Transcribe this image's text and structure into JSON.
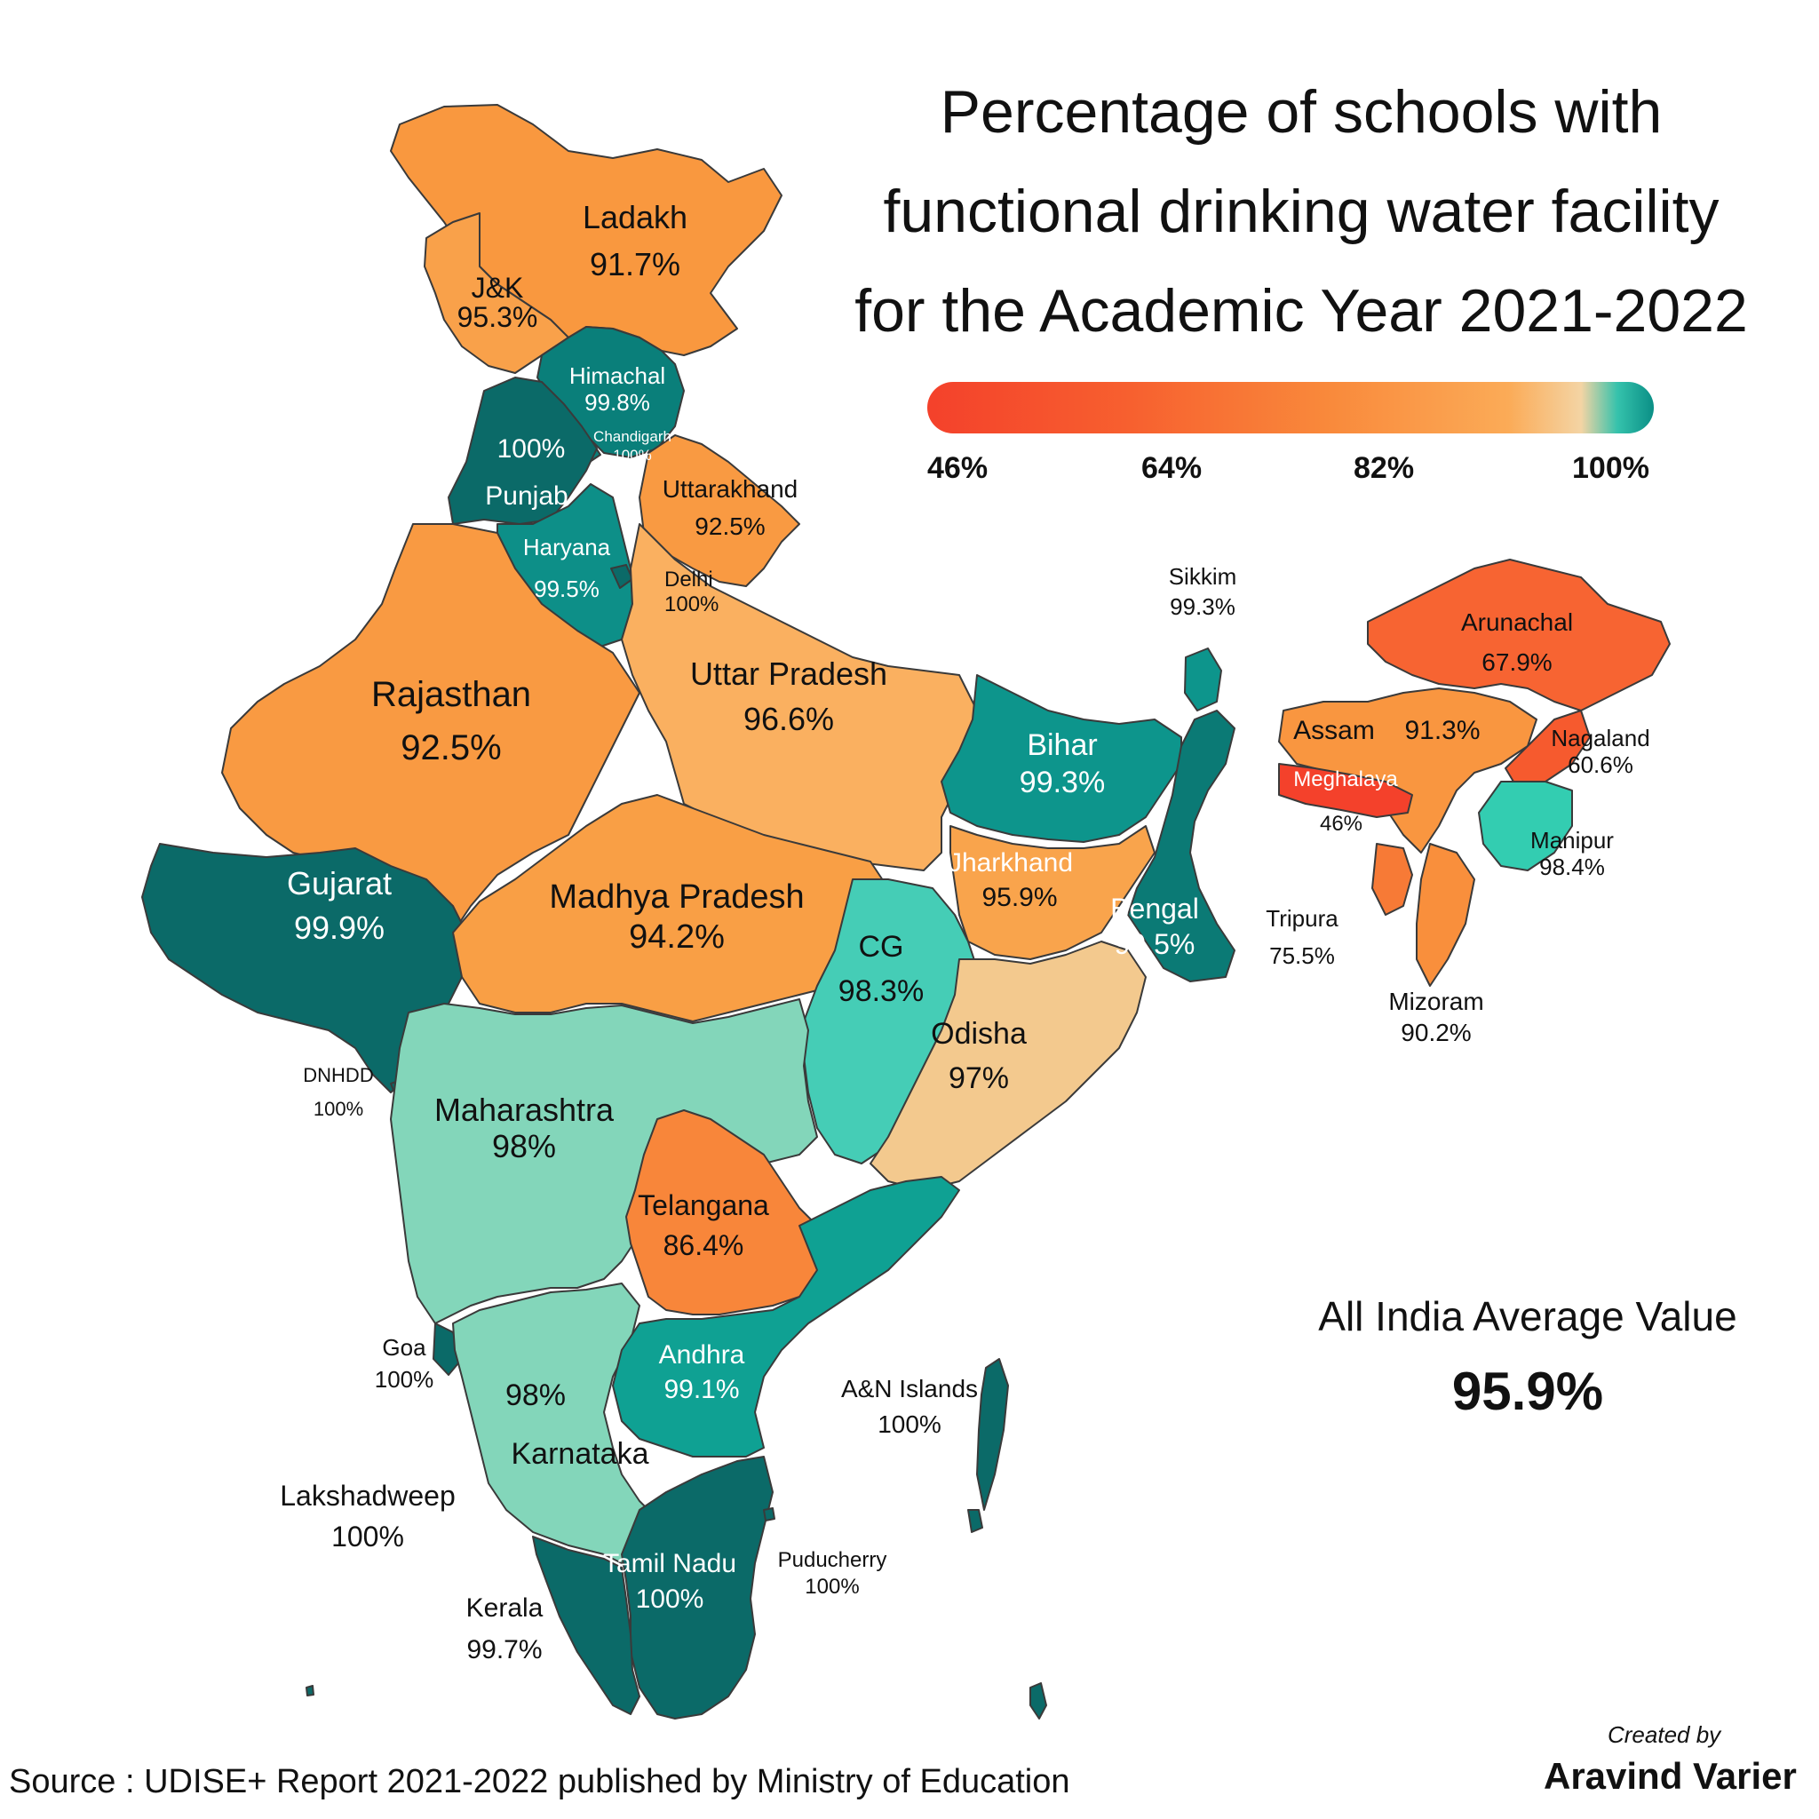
{
  "title_lines": [
    "Percentage of schools with",
    "functional drinking water facility",
    "for the Academic Year 2021-2022"
  ],
  "legend": {
    "ticks": [
      "46%",
      "64%",
      "82%",
      "100%"
    ],
    "colors": [
      "#f4412b",
      "#f7602f",
      "#f9893b",
      "#fbab57",
      "#f4d4a4",
      "#35c2ac",
      "#0a8f86"
    ]
  },
  "regions": [
    {
      "name": "Ladakh",
      "value": "91.7%",
      "percent": 91.7,
      "color": "#f9983f"
    },
    {
      "name": "J&K",
      "value": "95.3%",
      "percent": 95.3,
      "color": "#f9a14a"
    },
    {
      "name": "Himachal",
      "value": "99.8%",
      "percent": 99.8,
      "color": "#0a7f7a"
    },
    {
      "name": "Chandigarh",
      "value": "100%",
      "percent": 100,
      "color": "#0a7f7a"
    },
    {
      "name": "Punjab",
      "value": "100%",
      "percent": 100,
      "color": "#0b6a68"
    },
    {
      "name": "Uttarakhand",
      "value": "92.5%",
      "percent": 92.5,
      "color": "#f99a42"
    },
    {
      "name": "Haryana",
      "value": "99.5%",
      "percent": 99.5,
      "color": "#0d8f88"
    },
    {
      "name": "Delhi",
      "value": "100%",
      "percent": 100,
      "color": "#0b6a68"
    },
    {
      "name": "Rajasthan",
      "value": "92.5%",
      "percent": 92.5,
      "color": "#f99a42"
    },
    {
      "name": "Uttar Pradesh",
      "value": "96.6%",
      "percent": 96.6,
      "color": "#fab060"
    },
    {
      "name": "Bihar",
      "value": "99.3%",
      "percent": 99.3,
      "color": "#0d958c"
    },
    {
      "name": "Sikkim",
      "value": "99.3%",
      "percent": 99.3,
      "color": "#0d958c"
    },
    {
      "name": "Arunachal",
      "value": "67.9%",
      "percent": 67.9,
      "color": "#f76432"
    },
    {
      "name": "Assam",
      "value": "91.3%",
      "percent": 91.3,
      "color": "#f99640"
    },
    {
      "name": "Nagaland",
      "value": "60.6%",
      "percent": 60.6,
      "color": "#f65a2e"
    },
    {
      "name": "Meghalaya",
      "value": "46%",
      "percent": 46,
      "color": "#f4412b"
    },
    {
      "name": "Manipur",
      "value": "98.4%",
      "percent": 98.4,
      "color": "#33cdb1"
    },
    {
      "name": "Tripura",
      "value": "75.5%",
      "percent": 75.5,
      "color": "#f77a36"
    },
    {
      "name": "Mizoram",
      "value": "90.2%",
      "percent": 90.2,
      "color": "#f98f3c"
    },
    {
      "name": "Gujarat",
      "value": "99.9%",
      "percent": 99.9,
      "color": "#0b6a68"
    },
    {
      "name": "Madhya Pradesh",
      "value": "94.2%",
      "percent": 94.2,
      "color": "#f99f45"
    },
    {
      "name": "Jharkhand",
      "value": "95.9%",
      "percent": 95.9,
      "color": "#f9a44c"
    },
    {
      "name": "Bengal",
      "value": "99.5%",
      "percent": 99.5,
      "color": "#0b7a75"
    },
    {
      "name": "CG",
      "value": "98.3%",
      "percent": 98.3,
      "color": "#45cdb6"
    },
    {
      "name": "Odisha",
      "value": "97%",
      "percent": 97,
      "color": "#f3c98e"
    },
    {
      "name": "DNHDD",
      "value": "100%",
      "percent": 100,
      "color": "#0b6a68"
    },
    {
      "name": "Maharashtra",
      "value": "98%",
      "percent": 98,
      "color": "#83d6ba"
    },
    {
      "name": "Telangana",
      "value": "86.4%",
      "percent": 86.4,
      "color": "#f8863a"
    },
    {
      "name": "Goa",
      "value": "100%",
      "percent": 100,
      "color": "#0b6a68"
    },
    {
      "name": "Karnataka",
      "value": "98%",
      "percent": 98,
      "color": "#83d6ba"
    },
    {
      "name": "Andhra",
      "value": "99.1%",
      "percent": 99.1,
      "color": "#0fa193"
    },
    {
      "name": "A&N Islands",
      "value": "100%",
      "percent": 100,
      "color": "#0b6a68"
    },
    {
      "name": "Lakshadweep",
      "value": "100%",
      "percent": 100,
      "color": "#0b6a68"
    },
    {
      "name": "Tamil Nadu",
      "value": "100%",
      "percent": 100,
      "color": "#0b6a68"
    },
    {
      "name": "Puducherry",
      "value": "100%",
      "percent": 100,
      "color": "#0b6a68"
    },
    {
      "name": "Kerala",
      "value": "99.7%",
      "percent": 99.7,
      "color": "#0b6a68"
    }
  ],
  "average": {
    "label": "All India Average Value",
    "value": "95.9%"
  },
  "source": "Source : UDISE+ Report 2021-2022 published by Ministry of Education",
  "credit": {
    "line1": "Created by",
    "line2": "Aravind Varier"
  },
  "chart_data": {
    "type": "choropleth",
    "title": "Percentage of schools with functional drinking water facility for the Academic Year 2021-2022",
    "scale_min": 46,
    "scale_max": 100,
    "scale_ticks": [
      46,
      64,
      82,
      100
    ],
    "categories": [
      "Ladakh",
      "J&K",
      "Himachal",
      "Chandigarh",
      "Punjab",
      "Uttarakhand",
      "Haryana",
      "Delhi",
      "Rajasthan",
      "Uttar Pradesh",
      "Bihar",
      "Sikkim",
      "Arunachal",
      "Assam",
      "Nagaland",
      "Meghalaya",
      "Manipur",
      "Tripura",
      "Mizoram",
      "Gujarat",
      "Madhya Pradesh",
      "Jharkhand",
      "Bengal",
      "CG",
      "Odisha",
      "DNHDD",
      "Maharashtra",
      "Telangana",
      "Goa",
      "Karnataka",
      "Andhra",
      "A&N Islands",
      "Lakshadweep",
      "Tamil Nadu",
      "Puducherry",
      "Kerala"
    ],
    "values": [
      91.7,
      95.3,
      99.8,
      100,
      100,
      92.5,
      99.5,
      100,
      92.5,
      96.6,
      99.3,
      99.3,
      67.9,
      91.3,
      60.6,
      46,
      98.4,
      75.5,
      90.2,
      99.9,
      94.2,
      95.9,
      99.5,
      98.3,
      97,
      100,
      98,
      86.4,
      100,
      98,
      99.1,
      100,
      100,
      100,
      100,
      99.7
    ],
    "average": 95.9
  }
}
